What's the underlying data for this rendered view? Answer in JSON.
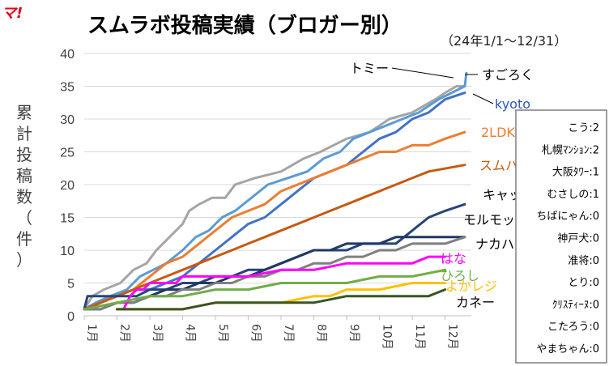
{
  "chart_data": {
    "type": "line",
    "title": "スムラボ投稿実績（ブロガー別）",
    "subtitle": "（24年1/1～12/31）",
    "logo_text": "マ!",
    "ylabel_chars": [
      "累",
      "計",
      "投",
      "稿",
      "数",
      "（",
      "件",
      "）"
    ],
    "ylim": [
      0,
      40
    ],
    "yticks": [
      0,
      5,
      10,
      15,
      20,
      25,
      30,
      35,
      40
    ],
    "months": [
      "1月",
      "2月",
      "3月",
      "4月",
      "5月",
      "6月",
      "7月",
      "8月",
      "9月",
      "10月",
      "11月",
      "12月"
    ],
    "grid": "horizontal",
    "series": [
      {
        "name": "トミー",
        "color": "#a5a5a5",
        "label_color": "#000000",
        "points": [
          [
            0,
            1
          ],
          [
            0.25,
            3
          ],
          [
            0.6,
            4
          ],
          [
            1.1,
            5
          ],
          [
            1.5,
            7
          ],
          [
            1.9,
            8
          ],
          [
            2.2,
            10
          ],
          [
            2.6,
            12
          ],
          [
            3.0,
            14
          ],
          [
            3.2,
            16
          ],
          [
            3.5,
            17
          ],
          [
            3.9,
            18
          ],
          [
            4.3,
            18
          ],
          [
            4.6,
            20
          ],
          [
            5.2,
            21
          ],
          [
            6.0,
            22
          ],
          [
            6.7,
            24
          ],
          [
            7.2,
            25
          ],
          [
            8.0,
            27
          ],
          [
            8.7,
            28
          ],
          [
            9.3,
            30
          ],
          [
            10.0,
            31
          ],
          [
            10.7,
            33
          ],
          [
            11.0,
            34
          ],
          [
            11.35,
            35
          ],
          [
            11.6,
            35
          ]
        ]
      },
      {
        "name": "すごろく",
        "color": "#5b9bd5",
        "label_color": "#000000",
        "points": [
          [
            0,
            1
          ],
          [
            0.35,
            2
          ],
          [
            0.8,
            3
          ],
          [
            1.3,
            4
          ],
          [
            1.7,
            6
          ],
          [
            2.1,
            7
          ],
          [
            2.5,
            8
          ],
          [
            3.0,
            10
          ],
          [
            3.4,
            12
          ],
          [
            3.8,
            13
          ],
          [
            4.2,
            15
          ],
          [
            4.6,
            16
          ],
          [
            5.1,
            18
          ],
          [
            5.6,
            20
          ],
          [
            6.2,
            21
          ],
          [
            6.8,
            22
          ],
          [
            7.3,
            24
          ],
          [
            7.8,
            25
          ],
          [
            8.2,
            27
          ],
          [
            8.7,
            28
          ],
          [
            9.2,
            29
          ],
          [
            9.7,
            30
          ],
          [
            10.2,
            31
          ],
          [
            10.8,
            33
          ],
          [
            11.2,
            34
          ],
          [
            11.6,
            35
          ],
          [
            11.65,
            37
          ]
        ]
      },
      {
        "name": "kyoto",
        "color": "#4472c4",
        "label_color": "#2e54b8",
        "points": [
          [
            0,
            1
          ],
          [
            0.5,
            2
          ],
          [
            1.0,
            3
          ],
          [
            1.5,
            4
          ],
          [
            2.0,
            4
          ],
          [
            2.5,
            5
          ],
          [
            3.0,
            6
          ],
          [
            3.5,
            8
          ],
          [
            4.0,
            10
          ],
          [
            4.5,
            12
          ],
          [
            5.0,
            14
          ],
          [
            5.5,
            15
          ],
          [
            6.0,
            17
          ],
          [
            6.5,
            19
          ],
          [
            7.0,
            21
          ],
          [
            7.5,
            22
          ],
          [
            8.0,
            23
          ],
          [
            8.5,
            25
          ],
          [
            9.0,
            27
          ],
          [
            9.5,
            28
          ],
          [
            10.0,
            30
          ],
          [
            10.5,
            31
          ],
          [
            11.0,
            33
          ],
          [
            11.6,
            34
          ]
        ]
      },
      {
        "name": "2LDK",
        "color": "#ed7d31",
        "label_color": "#ed7d31",
        "points": [
          [
            0,
            1
          ],
          [
            0.5,
            2
          ],
          [
            1.0,
            3
          ],
          [
            1.5,
            4
          ],
          [
            2.0,
            6
          ],
          [
            2.5,
            8
          ],
          [
            3.0,
            9
          ],
          [
            3.5,
            11
          ],
          [
            4.0,
            13
          ],
          [
            4.5,
            15
          ],
          [
            5.0,
            16
          ],
          [
            5.5,
            17
          ],
          [
            6.0,
            19
          ],
          [
            6.5,
            20
          ],
          [
            7.0,
            21
          ],
          [
            7.5,
            22
          ],
          [
            8.0,
            23
          ],
          [
            8.5,
            24
          ],
          [
            9.0,
            25
          ],
          [
            9.5,
            25
          ],
          [
            10.0,
            26
          ],
          [
            10.5,
            26
          ],
          [
            11.0,
            27
          ],
          [
            11.6,
            28
          ]
        ]
      },
      {
        "name": "スムハシ",
        "color": "#c55a11",
        "label_color": "#c55a11",
        "points": [
          [
            0,
            1
          ],
          [
            0.5,
            2
          ],
          [
            1.0,
            3
          ],
          [
            1.5,
            4
          ],
          [
            2.0,
            5
          ],
          [
            2.5,
            6
          ],
          [
            3.0,
            7
          ],
          [
            3.5,
            8
          ],
          [
            4.0,
            9
          ],
          [
            4.5,
            10
          ],
          [
            5.0,
            11
          ],
          [
            5.5,
            12
          ],
          [
            6.0,
            13
          ],
          [
            6.5,
            14
          ],
          [
            7.0,
            15
          ],
          [
            7.5,
            16
          ],
          [
            8.0,
            17
          ],
          [
            8.5,
            18
          ],
          [
            9.0,
            19
          ],
          [
            9.5,
            20
          ],
          [
            10.0,
            21
          ],
          [
            10.5,
            22
          ],
          [
            11.6,
            23
          ]
        ]
      },
      {
        "name": "キャット",
        "color": "#264478",
        "label_color": "#000000",
        "points": [
          [
            0,
            1
          ],
          [
            0.1,
            3
          ],
          [
            0.8,
            3
          ],
          [
            1.2,
            3
          ],
          [
            1.6,
            3
          ],
          [
            2.0,
            4
          ],
          [
            2.5,
            4
          ],
          [
            3.0,
            5
          ],
          [
            3.5,
            5
          ],
          [
            4.0,
            6
          ],
          [
            4.5,
            6
          ],
          [
            5.0,
            7
          ],
          [
            5.5,
            7
          ],
          [
            6.0,
            8
          ],
          [
            6.5,
            9
          ],
          [
            7.0,
            10
          ],
          [
            7.5,
            10
          ],
          [
            8.0,
            10
          ],
          [
            8.5,
            11
          ],
          [
            9.0,
            11
          ],
          [
            9.5,
            11
          ],
          [
            10.0,
            13
          ],
          [
            10.5,
            15
          ],
          [
            11.0,
            16
          ],
          [
            11.6,
            17
          ]
        ]
      },
      {
        "name": "モルモット",
        "color": "#203864",
        "label_color": "#000000",
        "points": [
          [
            0,
            1
          ],
          [
            0.5,
            1
          ],
          [
            1.0,
            2
          ],
          [
            1.5,
            2
          ],
          [
            2.0,
            3
          ],
          [
            2.5,
            4
          ],
          [
            3.0,
            4
          ],
          [
            3.5,
            5
          ],
          [
            4.0,
            5
          ],
          [
            4.5,
            6
          ],
          [
            5.0,
            6
          ],
          [
            5.5,
            7
          ],
          [
            6.0,
            8
          ],
          [
            6.5,
            9
          ],
          [
            7.0,
            10
          ],
          [
            7.5,
            10
          ],
          [
            8.0,
            11
          ],
          [
            8.5,
            11
          ],
          [
            9.0,
            11
          ],
          [
            9.5,
            12
          ],
          [
            10.0,
            12
          ],
          [
            10.5,
            12
          ],
          [
            11.0,
            12
          ],
          [
            11.6,
            12
          ]
        ]
      },
      {
        "name": "ナカハラ",
        "color": "#7f7f7f",
        "label_color": "#000000",
        "points": [
          [
            0,
            1
          ],
          [
            0.5,
            1
          ],
          [
            1.0,
            2
          ],
          [
            1.5,
            2
          ],
          [
            2.0,
            3
          ],
          [
            2.5,
            3
          ],
          [
            3.0,
            4
          ],
          [
            3.5,
            4
          ],
          [
            4.0,
            5
          ],
          [
            4.5,
            5
          ],
          [
            5.0,
            6
          ],
          [
            5.5,
            6
          ],
          [
            6.0,
            7
          ],
          [
            6.5,
            7
          ],
          [
            7.0,
            8
          ],
          [
            7.5,
            8
          ],
          [
            8.0,
            9
          ],
          [
            8.5,
            9
          ],
          [
            9.0,
            10
          ],
          [
            9.5,
            10
          ],
          [
            10.0,
            11
          ],
          [
            10.5,
            11
          ],
          [
            11.0,
            11
          ],
          [
            11.6,
            12
          ]
        ]
      },
      {
        "name": "はな",
        "color": "#ff00ff",
        "label_color": "#ff00ff",
        "points": [
          [
            1.2,
            1
          ],
          [
            1.4,
            3
          ],
          [
            1.6,
            4
          ],
          [
            1.8,
            4
          ],
          [
            2.0,
            5
          ],
          [
            2.2,
            5
          ],
          [
            2.4,
            5
          ],
          [
            2.6,
            5
          ],
          [
            2.8,
            5
          ],
          [
            3.0,
            6
          ],
          [
            4.0,
            6
          ],
          [
            5.0,
            6
          ],
          [
            6.0,
            7
          ],
          [
            7.0,
            7
          ],
          [
            8.0,
            8
          ],
          [
            9.0,
            8
          ],
          [
            10.0,
            8
          ],
          [
            10.5,
            9
          ],
          [
            11.0,
            9
          ]
        ]
      },
      {
        "name": "ひろし",
        "color": "#70ad47",
        "label_color": "#70ad47",
        "points": [
          [
            0,
            1
          ],
          [
            1.0,
            2
          ],
          [
            2.0,
            3
          ],
          [
            3.0,
            3
          ],
          [
            4.0,
            4
          ],
          [
            5.0,
            4
          ],
          [
            6.0,
            5
          ],
          [
            7.0,
            5
          ],
          [
            8.0,
            5
          ],
          [
            9.0,
            6
          ],
          [
            10.0,
            6
          ],
          [
            11.0,
            7
          ]
        ]
      },
      {
        "name": "よかレジ",
        "color": "#ffc000",
        "label_color": "#ffc000",
        "points": [
          [
            1.0,
            1
          ],
          [
            2.0,
            1
          ],
          [
            3.0,
            1
          ],
          [
            4.0,
            2
          ],
          [
            5.0,
            2
          ],
          [
            6.0,
            2
          ],
          [
            7.0,
            3
          ],
          [
            7.5,
            3
          ],
          [
            8.0,
            4
          ],
          [
            9.0,
            4
          ],
          [
            10.0,
            5
          ],
          [
            11.0,
            5
          ]
        ]
      },
      {
        "name": "カネー",
        "color": "#375623",
        "label_color": "#000000",
        "points": [
          [
            1.0,
            1
          ],
          [
            2.0,
            1
          ],
          [
            3.0,
            1
          ],
          [
            4.0,
            2
          ],
          [
            5.0,
            2
          ],
          [
            6.0,
            2
          ],
          [
            7.0,
            2
          ],
          [
            8.0,
            3
          ],
          [
            9.0,
            3
          ],
          [
            10.0,
            3
          ],
          [
            10.5,
            3
          ],
          [
            11.0,
            4
          ]
        ]
      }
    ],
    "legend_box": [
      "こう:2",
      "札幌ﾏﾝｼｮﾝ:2",
      "大阪ﾀﾜｰ:1",
      "むさしの:1",
      "ちばにゃん:0",
      "神戸犬:0",
      "准将:0",
      "とり:0",
      "ｸﾘｽﾃｨｰﾇ:0",
      "こたろう:0",
      "やまちゃん:0"
    ]
  }
}
